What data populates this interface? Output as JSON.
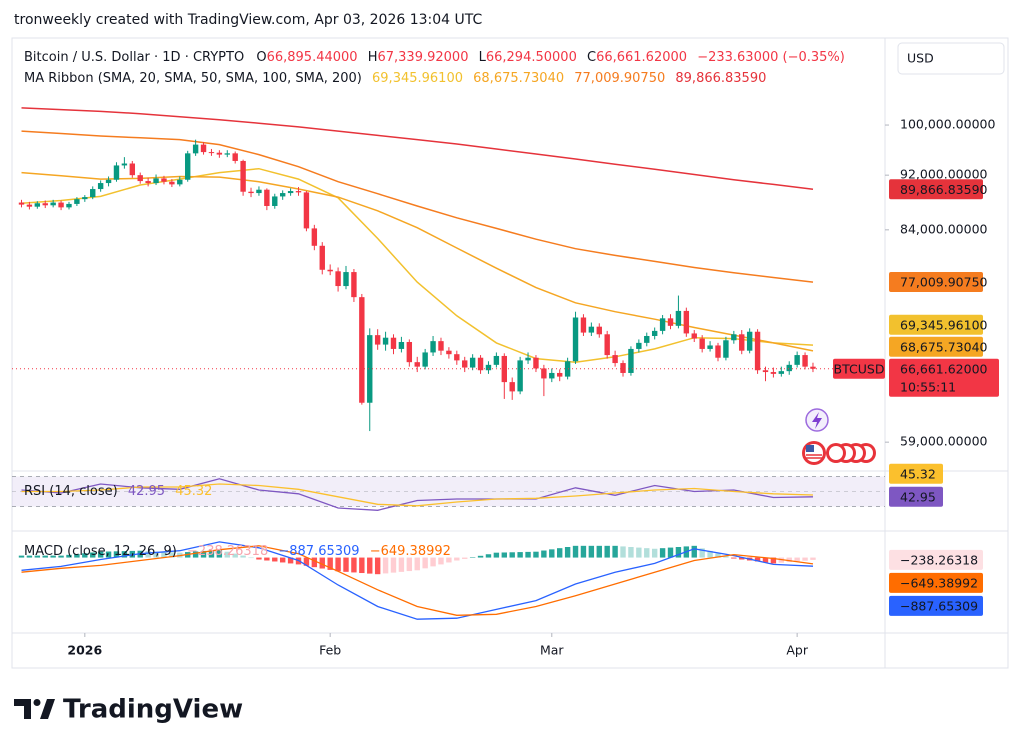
{
  "header": {
    "attribution": "tronweekly created with TradingView.com, Apr 03, 2026 13:04 UTC"
  },
  "footer": {
    "brand": "TradingView"
  },
  "chart_data": [
    {
      "type": "candlestick",
      "symbol": "Bitcoin / U.S. Dollar · 1D · CRYPTO",
      "ohlc_labels": [
        {
          "key": "O",
          "value": "66,895.44000"
        },
        {
          "key": "H",
          "value": "67,339.92000"
        },
        {
          "key": "L",
          "value": "66,294.50000"
        },
        {
          "key": "C",
          "value": "66,661.62000"
        }
      ],
      "change_label": "−233.63000 (−0.35%)",
      "currency": "USD",
      "ticker": "BTCUSD",
      "countdown": "10:55:11",
      "last_label": "66,661.62000",
      "log_scale": true,
      "ylim": [
        56330,
        115200
      ],
      "yticks": [
        {
          "value": 100000,
          "label": "100,000.00000"
        },
        {
          "value": 92000,
          "label": "92,000.00000"
        },
        {
          "value": 84000,
          "label": "84,000.00000"
        },
        {
          "value": 59000,
          "label": "59,000.00000"
        }
      ],
      "xlim": [
        -1.2,
        109.1
      ],
      "xticks": [
        {
          "value": 8,
          "label": "2026"
        },
        {
          "value": 39,
          "label": "Feb"
        },
        {
          "value": 67,
          "label": "Mar"
        },
        {
          "value": 98,
          "label": "Apr"
        }
      ],
      "up_color": "#089981",
      "down_color": "#f23645",
      "candles": [
        [
          87900,
          88300,
          87200,
          87600
        ],
        [
          87600,
          88000,
          86900,
          87300
        ],
        [
          87300,
          88100,
          87000,
          87800
        ],
        [
          87800,
          88200,
          87100,
          87500
        ],
        [
          87500,
          88300,
          87200,
          87900
        ],
        [
          87900,
          88200,
          86800,
          87200
        ],
        [
          87200,
          88000,
          86900,
          87700
        ],
        [
          87700,
          88700,
          87400,
          88400
        ],
        [
          88400,
          89000,
          88000,
          88700
        ],
        [
          88700,
          90300,
          88400,
          89900
        ],
        [
          89900,
          91200,
          89500,
          90800
        ],
        [
          90800,
          91800,
          90300,
          91300
        ],
        [
          91300,
          94000,
          91000,
          93500
        ],
        [
          93500,
          94800,
          93000,
          93800
        ],
        [
          93800,
          94200,
          91600,
          92000
        ],
        [
          92000,
          92400,
          90700,
          91100
        ],
        [
          91100,
          91600,
          90300,
          90800
        ],
        [
          90800,
          92100,
          90500,
          91500
        ],
        [
          91500,
          91900,
          90600,
          91000
        ],
        [
          91000,
          91400,
          90200,
          90600
        ],
        [
          90600,
          91800,
          90300,
          91300
        ],
        [
          91300,
          95800,
          91000,
          95400
        ],
        [
          95400,
          97600,
          95000,
          96800
        ],
        [
          96800,
          97200,
          95200,
          95600
        ],
        [
          95600,
          96100,
          95000,
          95500
        ],
        [
          95500,
          95900,
          94700,
          95200
        ],
        [
          95200,
          95900,
          94800,
          95400
        ],
        [
          95400,
          95700,
          93800,
          94200
        ],
        [
          94200,
          94400,
          88900,
          89500
        ],
        [
          89500,
          90100,
          88700,
          89300
        ],
        [
          89300,
          90300,
          88900,
          89800
        ],
        [
          89800,
          90000,
          86800,
          87400
        ],
        [
          87400,
          89200,
          87000,
          88800
        ],
        [
          88800,
          89700,
          88300,
          89300
        ],
        [
          89300,
          90000,
          88900,
          89600
        ],
        [
          89600,
          90200,
          88900,
          89400
        ],
        [
          89400,
          89600,
          83800,
          84200
        ],
        [
          84200,
          84700,
          81200,
          81800
        ],
        [
          81800,
          82300,
          78000,
          78600
        ],
        [
          78600,
          79300,
          77900,
          78400
        ],
        [
          78400,
          78900,
          75800,
          76500
        ],
        [
          76500,
          79100,
          76100,
          78300
        ],
        [
          78300,
          78700,
          74500,
          75100
        ],
        [
          75100,
          75500,
          62800,
          63000
        ],
        [
          63000,
          71300,
          60100,
          70500
        ],
        [
          70500,
          71200,
          68800,
          69400
        ],
        [
          69400,
          70900,
          68700,
          70200
        ],
        [
          70200,
          70600,
          68300,
          68900
        ],
        [
          68900,
          70300,
          68500,
          69700
        ],
        [
          69700,
          70000,
          66900,
          67400
        ],
        [
          67400,
          68000,
          66300,
          66900
        ],
        [
          66900,
          68900,
          66600,
          68500
        ],
        [
          68500,
          70400,
          68100,
          69800
        ],
        [
          69800,
          70200,
          68200,
          68700
        ],
        [
          68700,
          69100,
          67800,
          68300
        ],
        [
          68300,
          68700,
          67100,
          67600
        ],
        [
          67600,
          68000,
          66300,
          66800
        ],
        [
          66800,
          68300,
          66500,
          67900
        ],
        [
          67900,
          68200,
          66100,
          66500
        ],
        [
          66500,
          67500,
          66100,
          67100
        ],
        [
          67100,
          68500,
          66800,
          68100
        ],
        [
          68100,
          68400,
          63400,
          65200
        ],
        [
          65200,
          65700,
          63300,
          64200
        ],
        [
          64200,
          68000,
          63900,
          67600
        ],
        [
          67600,
          68500,
          67200,
          67900
        ],
        [
          67900,
          68200,
          66300,
          66700
        ],
        [
          66700,
          67100,
          63700,
          65600
        ],
        [
          65600,
          66700,
          65200,
          66200
        ],
        [
          66200,
          66600,
          65300,
          65800
        ],
        [
          65800,
          67900,
          65500,
          67500
        ],
        [
          67500,
          73300,
          67200,
          72600
        ],
        [
          72600,
          73000,
          70400,
          70800
        ],
        [
          70800,
          72000,
          70400,
          71500
        ],
        [
          71500,
          71900,
          70200,
          70600
        ],
        [
          70600,
          71000,
          67800,
          68200
        ],
        [
          68200,
          68700,
          66900,
          67300
        ],
        [
          67300,
          67600,
          65800,
          66200
        ],
        [
          66200,
          69200,
          65900,
          68900
        ],
        [
          68900,
          70000,
          68500,
          69600
        ],
        [
          69600,
          70800,
          69200,
          70400
        ],
        [
          70400,
          71400,
          70000,
          71000
        ],
        [
          71000,
          72900,
          70600,
          72500
        ],
        [
          72500,
          73000,
          71200,
          71600
        ],
        [
          71600,
          75300,
          71300,
          73400
        ],
        [
          73400,
          73800,
          70300,
          70700
        ],
        [
          70700,
          71100,
          69700,
          70100
        ],
        [
          70100,
          70500,
          68500,
          68900
        ],
        [
          68900,
          69800,
          68600,
          69300
        ],
        [
          69300,
          69600,
          67500,
          67900
        ],
        [
          67900,
          70300,
          67600,
          69900
        ],
        [
          69900,
          71000,
          69500,
          70600
        ],
        [
          70600,
          71100,
          68300,
          68700
        ],
        [
          68700,
          71300,
          68400,
          70900
        ],
        [
          70900,
          71200,
          66100,
          66500
        ],
        [
          66500,
          66900,
          65300,
          66300
        ],
        [
          66300,
          66800,
          65700,
          66100
        ],
        [
          66100,
          66900,
          65800,
          66400
        ],
        [
          66400,
          67500,
          66000,
          67100
        ],
        [
          67100,
          68600,
          66800,
          68200
        ],
        [
          68200,
          68500,
          66600,
          66900
        ],
        [
          66895.44,
          67339.92,
          66294.5,
          66661.62
        ]
      ],
      "ribbon": {
        "title": "MA Ribbon (SMA, 20, SMA, 50, SMA, 100, SMA, 200)",
        "x": [
          0,
          5,
          10,
          15,
          20,
          25,
          30,
          35,
          40,
          45,
          50,
          55,
          60,
          65,
          70,
          75,
          80,
          85,
          90,
          95,
          100
        ],
        "series": [
          {
            "color": "#f2c12e",
            "values": [
              87800,
              88200,
              88800,
              90500,
              91400,
              92400,
              93000,
              91400,
              88600,
              82800,
              77000,
              72800,
              69600,
              67800,
              67400,
              68000,
              68900,
              70200,
              70100,
              69600,
              69345.961
            ],
            "last_label": "69,345.96100"
          },
          {
            "color": "#f5a623",
            "values": [
              92400,
              91900,
              91400,
              91500,
              91800,
              91700,
              91000,
              89900,
              88700,
              86700,
              84300,
              81500,
              78800,
              76300,
              74400,
              73300,
              72400,
              71400,
              70500,
              69600,
              68675.7304
            ],
            "last_label": "68,675.73040"
          },
          {
            "color": "#f57c1f",
            "values": [
              99000,
              98600,
              98200,
              97900,
              97600,
              96800,
              95200,
              93300,
              91000,
              89200,
              87400,
              85700,
              84200,
              82700,
              81400,
              80500,
              79700,
              78900,
              78200,
              77600,
              77009.9075
            ],
            "last_label": "77,009.90750"
          },
          {
            "color": "#e5333b",
            "values": [
              102900,
              102600,
              102300,
              101900,
              101400,
              100900,
              100300,
              99700,
              99000,
              98300,
              97600,
              96900,
              96100,
              95300,
              94500,
              93700,
              92900,
              92100,
              91300,
              90600,
              89866.8359
            ],
            "last_label": "89,866.83590"
          }
        ]
      }
    },
    {
      "type": "rsi",
      "title": "RSI (14, close)",
      "ylim": [
        20,
        76
      ],
      "levels": [
        70,
        50,
        30
      ],
      "x": [
        0,
        5,
        10,
        15,
        20,
        25,
        30,
        35,
        40,
        45,
        50,
        55,
        60,
        65,
        70,
        75,
        80,
        85,
        90,
        95,
        100
      ],
      "series": [
        {
          "color": "#7e57c2",
          "values": [
            52,
            48,
            60,
            55,
            53,
            67,
            52,
            47,
            28,
            25,
            38,
            40,
            40,
            40,
            55,
            45,
            58,
            50,
            52,
            42,
            42.95
          ],
          "last_label": "42.95"
        },
        {
          "color": "#fbc02d",
          "values": [
            50,
            50,
            52,
            56,
            56,
            60,
            58,
            53,
            43,
            33,
            31,
            36,
            40,
            41,
            44,
            48,
            52,
            54,
            50,
            47,
            45.32
          ],
          "last_label": "45.32"
        }
      ]
    },
    {
      "type": "macd",
      "title": "MACD (close, 12, 26, 9)",
      "ylim": [
        -7200,
        2000
      ],
      "x": [
        0,
        5,
        10,
        15,
        20,
        25,
        30,
        35,
        40,
        45,
        50,
        55,
        60,
        65,
        70,
        75,
        80,
        85,
        90,
        95,
        100
      ],
      "histogram": {
        "colors": [
          "#26a69a",
          "#b2dfdb",
          "#ffcdd2",
          "#ff5252"
        ],
        "last_label": "−238.26318",
        "values": [
          200,
          200,
          200,
          200,
          200,
          200,
          280,
          360,
          440,
          520,
          600,
          620,
          640,
          660,
          680,
          700,
          660,
          620,
          580,
          540,
          500,
          560,
          620,
          680,
          740,
          800,
          600,
          400,
          200,
          0,
          -200,
          -300,
          -400,
          -500,
          -600,
          -700,
          -840,
          -980,
          -1120,
          -1260,
          -1400,
          -1460,
          -1520,
          -1580,
          -1640,
          -1700,
          -1620,
          -1540,
          -1460,
          -1380,
          -1300,
          -1100,
          -900,
          -700,
          -500,
          -300,
          -140,
          20,
          180,
          340,
          500,
          520,
          540,
          560,
          580,
          600,
          720,
          840,
          960,
          1080,
          1200,
          1200,
          1200,
          1200,
          1200,
          1200,
          1140,
          1080,
          1020,
          960,
          900,
          960,
          1020,
          1080,
          1140,
          1200,
          940,
          680,
          420,
          160,
          -100,
          -200,
          -300,
          -400,
          -500,
          -600,
          -530,
          -460,
          -390,
          -320,
          -238.26318
        ]
      },
      "series": [
        {
          "color": "#2962ff",
          "values": [
            -1300,
            -900,
            -200,
            400,
            700,
            1600,
            1000,
            -300,
            -2800,
            -5000,
            -6300,
            -6200,
            -5300,
            -4400,
            -2700,
            -1500,
            -600,
            900,
            200,
            -700,
            -887.65309
          ],
          "last_label": "−887.65309"
        },
        {
          "color": "#ff6d00",
          "values": [
            -1500,
            -1100,
            -800,
            -300,
            200,
            800,
            1200,
            400,
            -1400,
            -3300,
            -5000,
            -5900,
            -5800,
            -5000,
            -3900,
            -2700,
            -1500,
            -300,
            300,
            -100,
            -649.38992
          ],
          "last_label": "−649.38992"
        }
      ]
    }
  ]
}
